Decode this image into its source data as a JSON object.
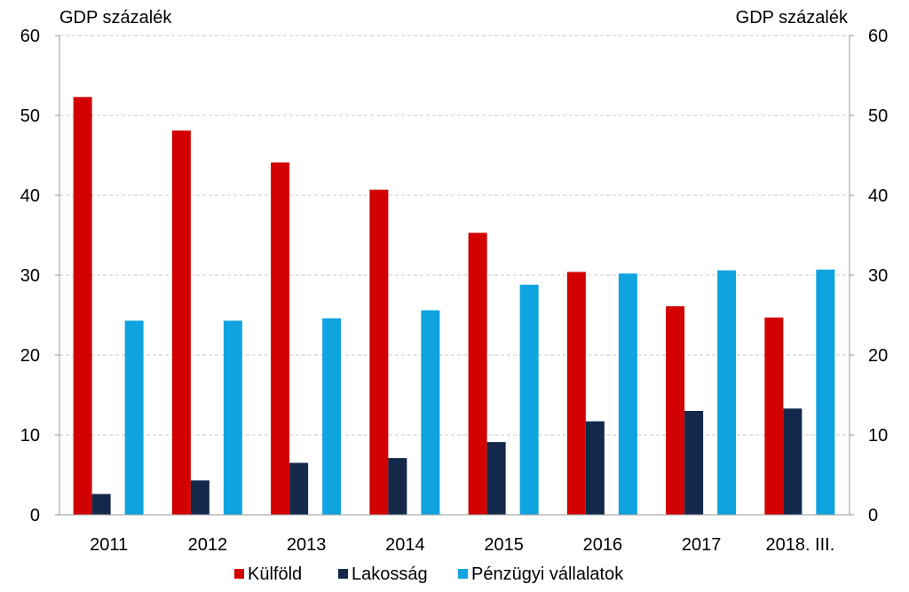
{
  "chart_data": {
    "type": "bar",
    "title": "",
    "ylabel_left": "GDP százalék",
    "ylabel_right": "GDP százalék",
    "ylim": [
      0,
      60
    ],
    "yticks": [
      0,
      10,
      20,
      30,
      40,
      50,
      60
    ],
    "grid": true,
    "legend_position": "bottom",
    "categories": [
      "2011",
      "2012",
      "2013",
      "2014",
      "2015",
      "2016",
      "2017",
      "2018. III."
    ],
    "series": [
      {
        "name": "Külföld",
        "color": "#d30000",
        "values": [
          52.3,
          48.1,
          44.1,
          40.7,
          35.3,
          30.4,
          26.1,
          24.7
        ]
      },
      {
        "name": "Lakosság",
        "color": "#13284b",
        "values": [
          2.6,
          4.3,
          6.5,
          7.1,
          9.1,
          11.7,
          13.0,
          13.3
        ]
      },
      {
        "name": "Pénzügyi vállalatok",
        "color": "#0fa3e0",
        "values": [
          24.3,
          24.3,
          24.6,
          25.6,
          28.8,
          30.2,
          30.6,
          30.7
        ]
      }
    ]
  }
}
